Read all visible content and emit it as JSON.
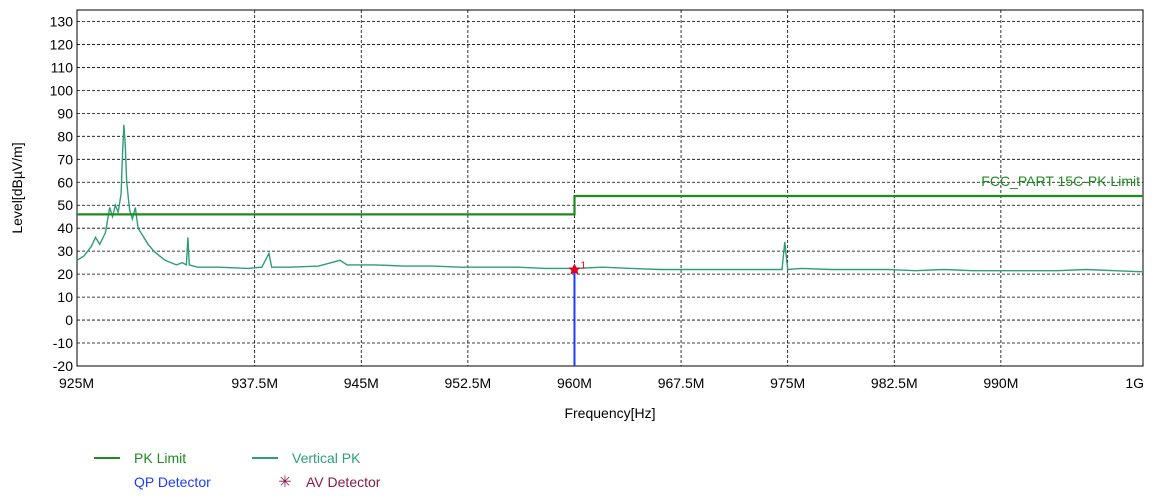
{
  "chart_data": {
    "type": "line",
    "xlabel": "Frequency[Hz]",
    "ylabel": "Level[dBµV/m]",
    "xlim": [
      925,
      1000
    ],
    "ylim": [
      -20,
      135
    ],
    "x_ticks": [
      925,
      937.5,
      945,
      952.5,
      960,
      967.5,
      975,
      982.5,
      990,
      1000
    ],
    "x_tick_labels": [
      "925M",
      "937.5M",
      "945M",
      "952.5M",
      "960M",
      "967.5M",
      "975M",
      "982.5M",
      "990M",
      "1G"
    ],
    "y_ticks": [
      -20,
      -10,
      0,
      10,
      20,
      30,
      40,
      50,
      60,
      70,
      80,
      90,
      100,
      110,
      120,
      130
    ],
    "y_tick_labels": [
      "-20",
      "-10",
      "0",
      "10",
      "20",
      "30",
      "40",
      "50",
      "60",
      "70",
      "80",
      "90",
      "100",
      "110",
      "120",
      "130"
    ],
    "grid": true,
    "limit_annotation": "FCC_PART 15C-PK Limit",
    "series": [
      {
        "name": "PK Limit",
        "color": "#1f8a1f",
        "style": "step",
        "points": [
          [
            925,
            46
          ],
          [
            960,
            46
          ],
          [
            960,
            54
          ],
          [
            1000,
            54
          ]
        ]
      },
      {
        "name": "Vertical PK",
        "color": "#2e9e76",
        "points": [
          [
            925,
            26
          ],
          [
            925.5,
            28
          ],
          [
            926,
            32
          ],
          [
            926.3,
            36
          ],
          [
            926.6,
            33
          ],
          [
            927,
            38
          ],
          [
            927.3,
            49
          ],
          [
            927.5,
            45
          ],
          [
            927.7,
            50
          ],
          [
            927.9,
            47
          ],
          [
            928.1,
            55
          ],
          [
            928.2,
            72
          ],
          [
            928.3,
            85
          ],
          [
            928.4,
            76
          ],
          [
            928.5,
            60
          ],
          [
            928.7,
            48
          ],
          [
            928.9,
            44
          ],
          [
            929.1,
            49
          ],
          [
            929.3,
            40
          ],
          [
            929.6,
            37
          ],
          [
            930,
            33
          ],
          [
            930.4,
            30
          ],
          [
            930.8,
            28
          ],
          [
            931.2,
            26
          ],
          [
            931.6,
            25
          ],
          [
            932,
            24
          ],
          [
            932.4,
            25
          ],
          [
            932.7,
            24
          ],
          [
            932.8,
            36
          ],
          [
            932.9,
            24
          ],
          [
            933.5,
            23
          ],
          [
            935,
            23
          ],
          [
            937,
            22.5
          ],
          [
            938,
            23
          ],
          [
            938.5,
            29
          ],
          [
            938.7,
            23
          ],
          [
            940,
            23
          ],
          [
            942,
            23.5
          ],
          [
            943.5,
            26
          ],
          [
            944,
            24
          ],
          [
            946,
            24
          ],
          [
            948,
            23.5
          ],
          [
            950,
            23.5
          ],
          [
            952,
            23
          ],
          [
            954,
            23
          ],
          [
            956,
            23
          ],
          [
            958,
            22.5
          ],
          [
            960,
            22.5
          ],
          [
            962,
            23
          ],
          [
            964,
            22.5
          ],
          [
            966,
            22
          ],
          [
            968,
            22
          ],
          [
            970,
            22
          ],
          [
            972,
            22
          ],
          [
            973.5,
            22
          ],
          [
            974.6,
            22
          ],
          [
            974.8,
            34
          ],
          [
            975,
            22
          ],
          [
            976,
            22.5
          ],
          [
            978,
            22
          ],
          [
            980,
            22
          ],
          [
            982,
            22
          ],
          [
            984,
            21.5
          ],
          [
            986,
            22
          ],
          [
            988,
            21.5
          ],
          [
            990,
            21.5
          ],
          [
            992,
            21.5
          ],
          [
            994,
            21.5
          ],
          [
            996,
            22
          ],
          [
            998,
            21.5
          ],
          [
            1000,
            21
          ]
        ]
      }
    ],
    "markers": [
      {
        "name": "QP Detector",
        "label": "1",
        "x": 960,
        "y": 22,
        "color": "#1e3cff",
        "marker_color": "#e0001a"
      },
      {
        "name": "AV Detector",
        "color": "#8a1a4a"
      }
    ],
    "legend": [
      {
        "label": "PK Limit",
        "color": "#1f8a1f",
        "kind": "line"
      },
      {
        "label": "Vertical PK",
        "color": "#2e9e76",
        "kind": "line"
      },
      {
        "label": "QP Detector",
        "color": "#1e3cff",
        "kind": "none"
      },
      {
        "label": "AV Detector",
        "color": "#8a1a4a",
        "kind": "star"
      }
    ]
  }
}
